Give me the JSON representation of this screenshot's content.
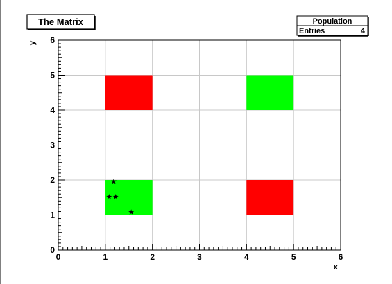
{
  "chart_data": {
    "type": "heatmap",
    "title": "The Matrix",
    "xlabel": "x",
    "ylabel": "y",
    "xlim": [
      0,
      6
    ],
    "ylim": [
      0,
      6
    ],
    "x_ticks": [
      "0",
      "1",
      "2",
      "3",
      "4",
      "5",
      "6"
    ],
    "y_ticks": [
      "0",
      "1",
      "2",
      "3",
      "4",
      "5",
      "6"
    ],
    "grid": true,
    "cells": [
      {
        "x": [
          1,
          2
        ],
        "y": [
          4,
          5
        ],
        "color": "#ff0000"
      },
      {
        "x": [
          4,
          5
        ],
        "y": [
          4,
          5
        ],
        "color": "#00ff00"
      },
      {
        "x": [
          1,
          2
        ],
        "y": [
          1,
          2
        ],
        "color": "#00ff00"
      },
      {
        "x": [
          4,
          5
        ],
        "y": [
          1,
          2
        ],
        "color": "#ff0000"
      }
    ],
    "points": [
      {
        "x": 1.18,
        "y": 1.96
      },
      {
        "x": 1.08,
        "y": 1.52
      },
      {
        "x": 1.22,
        "y": 1.52
      },
      {
        "x": 1.55,
        "y": 1.08
      }
    ],
    "marker": "star",
    "stats_box": {
      "title": "Population",
      "entries_label": "Entries",
      "entries_value": "4"
    }
  }
}
